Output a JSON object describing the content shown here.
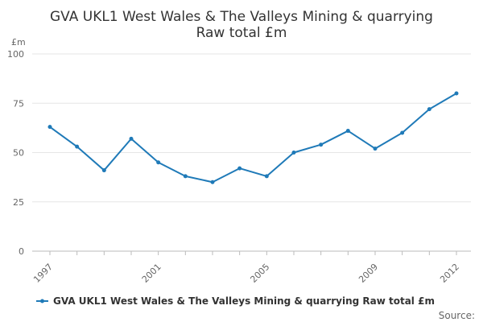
{
  "chart_data": {
    "type": "line",
    "title": "GVA UKL1 West Wales & The Valleys Mining & quarrying Raw total £m",
    "title_lines": [
      "GVA UKL1 West Wales & The Valleys Mining & quarrying",
      "Raw total £m"
    ],
    "ylabel": "£m",
    "xlabel": "",
    "ylim": [
      0,
      100
    ],
    "y_ticks": [
      0,
      25,
      50,
      75,
      100
    ],
    "x_tick_labels": [
      "1997",
      "2001",
      "2005",
      "2009",
      "2012"
    ],
    "x": [
      1997,
      1998,
      1999,
      2000,
      2001,
      2002,
      2003,
      2004,
      2005,
      2006,
      2007,
      2008,
      2009,
      2010,
      2011,
      2012
    ],
    "series": [
      {
        "name": "GVA UKL1 West Wales & The Valleys Mining & quarrying Raw total £m",
        "color": "#1f7ab8",
        "values": [
          63,
          53,
          41,
          57,
          45,
          38,
          35,
          42,
          38,
          50,
          54,
          61,
          52,
          60,
          72,
          80
        ]
      }
    ],
    "grid": true,
    "legend_position": "bottom",
    "source_label": "Source:"
  }
}
